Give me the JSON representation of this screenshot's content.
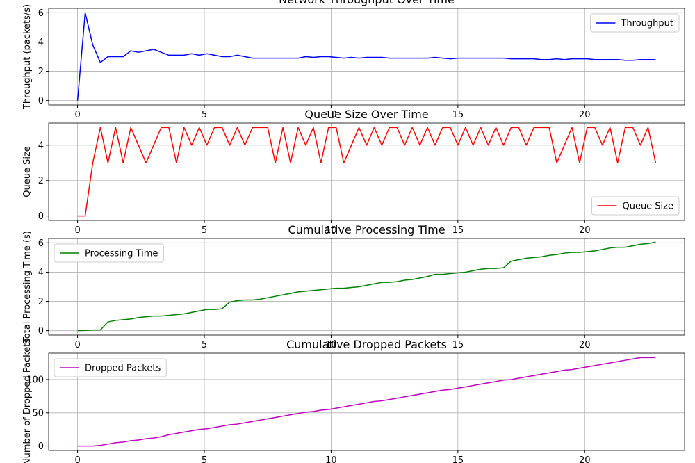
{
  "chart_data": [
    {
      "type": "line",
      "title": "Network Throughput Over Time",
      "y_label": "Throughput (packets/s)",
      "legend": "upper right",
      "grid": true,
      "x": [
        0,
        0.3,
        0.6,
        0.9,
        1.2,
        1.5,
        1.8,
        2.1,
        2.4,
        2.7,
        3,
        3.3,
        3.6,
        3.9,
        4.2,
        4.5,
        4.8,
        5.1,
        5.4,
        5.7,
        6,
        6.3,
        6.6,
        6.9,
        7.2,
        7.5,
        7.8,
        8.1,
        8.4,
        8.7,
        9,
        9.3,
        9.6,
        9.9,
        10.2,
        10.5,
        10.8,
        11.1,
        11.4,
        11.7,
        12,
        12.3,
        12.6,
        12.9,
        13.2,
        13.5,
        13.8,
        14.1,
        14.4,
        14.7,
        15,
        15.3,
        15.6,
        15.9,
        16.2,
        16.5,
        16.8,
        17.1,
        17.4,
        17.7,
        18,
        18.3,
        18.6,
        18.9,
        19.2,
        19.5,
        19.8,
        20.1,
        20.4,
        20.7,
        21,
        21.3,
        21.6,
        21.9,
        22.2,
        22.5,
        22.8
      ],
      "series": [
        {
          "name": "Throughput",
          "color": "#0000ff",
          "values": [
            0,
            6,
            3.8,
            2.6,
            3.0,
            3.0,
            3.0,
            3.4,
            3.3,
            3.4,
            3.5,
            3.3,
            3.1,
            3.1,
            3.1,
            3.2,
            3.1,
            3.2,
            3.1,
            3.0,
            3.0,
            3.1,
            3.0,
            2.9,
            2.9,
            2.9,
            2.9,
            2.9,
            2.9,
            2.9,
            3.0,
            2.95,
            3.0,
            3.0,
            2.95,
            2.9,
            2.95,
            2.9,
            2.95,
            2.95,
            2.95,
            2.9,
            2.9,
            2.9,
            2.9,
            2.9,
            2.9,
            2.95,
            2.9,
            2.85,
            2.9,
            2.9,
            2.9,
            2.9,
            2.9,
            2.9,
            2.9,
            2.85,
            2.85,
            2.85,
            2.85,
            2.8,
            2.8,
            2.85,
            2.8,
            2.85,
            2.85,
            2.85,
            2.8,
            2.8,
            2.8,
            2.8,
            2.75,
            2.75,
            2.8,
            2.8,
            2.8
          ]
        }
      ],
      "xlim": [
        -1.14,
        23.94
      ],
      "xticks": [
        0,
        5,
        10,
        15,
        20
      ],
      "ylim": [
        -0.3,
        6.3
      ],
      "yticks": [
        0,
        2,
        4,
        6
      ]
    },
    {
      "type": "line",
      "title": "Queue Size Over Time",
      "y_label": "Queue Size",
      "legend": "lower right",
      "grid": true,
      "x": [
        0,
        0.3,
        0.6,
        0.9,
        1.2,
        1.5,
        1.8,
        2.1,
        2.4,
        2.7,
        3,
        3.3,
        3.6,
        3.9,
        4.2,
        4.5,
        4.8,
        5.1,
        5.4,
        5.7,
        6,
        6.3,
        6.6,
        6.9,
        7.2,
        7.5,
        7.8,
        8.1,
        8.4,
        8.7,
        9,
        9.3,
        9.6,
        9.9,
        10.2,
        10.5,
        10.8,
        11.1,
        11.4,
        11.7,
        12,
        12.3,
        12.6,
        12.9,
        13.2,
        13.5,
        13.8,
        14.1,
        14.4,
        14.7,
        15,
        15.3,
        15.6,
        15.9,
        16.2,
        16.5,
        16.8,
        17.1,
        17.4,
        17.7,
        18,
        18.3,
        18.6,
        18.9,
        19.2,
        19.5,
        19.8,
        20.1,
        20.4,
        20.7,
        21,
        21.3,
        21.6,
        21.9,
        22.2,
        22.5,
        22.8
      ],
      "series": [
        {
          "name": "Queue Size",
          "color": "#ff0000",
          "values": [
            0,
            0,
            3,
            5,
            3,
            5,
            3,
            5,
            4,
            3,
            4,
            5,
            5,
            3,
            5,
            4,
            5,
            4,
            5,
            5,
            4,
            5,
            4,
            5,
            5,
            5,
            3,
            5,
            3,
            5,
            4,
            5,
            3,
            5,
            5,
            3,
            4,
            5,
            4,
            5,
            4,
            5,
            5,
            4,
            5,
            4,
            5,
            4,
            5,
            5,
            4,
            5,
            4,
            5,
            4,
            5,
            4,
            5,
            5,
            4,
            5,
            5,
            5,
            3,
            4,
            5,
            3,
            5,
            5,
            4,
            5,
            3,
            5,
            5,
            4,
            5,
            3
          ]
        }
      ],
      "xlim": [
        -1.14,
        23.94
      ],
      "xticks": [
        0,
        5,
        10,
        15,
        20
      ],
      "ylim": [
        -0.25,
        5.25
      ],
      "yticks": [
        0,
        2,
        4
      ]
    },
    {
      "type": "line",
      "title": "Cumulative Processing Time",
      "y_label": "Total Processing Time (s)",
      "legend": "upper left",
      "grid": true,
      "x": [
        0,
        0.3,
        0.6,
        0.9,
        1.2,
        1.5,
        1.8,
        2.1,
        2.4,
        2.7,
        3,
        3.3,
        3.6,
        3.9,
        4.2,
        4.5,
        4.8,
        5.1,
        5.4,
        5.7,
        6,
        6.3,
        6.6,
        6.9,
        7.2,
        7.5,
        7.8,
        8.1,
        8.4,
        8.7,
        9,
        9.3,
        9.6,
        9.9,
        10.2,
        10.5,
        10.8,
        11.1,
        11.4,
        11.7,
        12,
        12.3,
        12.6,
        12.9,
        13.2,
        13.5,
        13.8,
        14.1,
        14.4,
        14.7,
        15,
        15.3,
        15.6,
        15.9,
        16.2,
        16.5,
        16.8,
        17.1,
        17.4,
        17.7,
        18,
        18.3,
        18.6,
        18.9,
        19.2,
        19.5,
        19.8,
        20.1,
        20.4,
        20.7,
        21,
        21.3,
        21.6,
        21.9,
        22.2,
        22.5,
        22.8
      ],
      "series": [
        {
          "name": "Processing Time",
          "color": "#008000",
          "values": [
            0,
            0.02,
            0.05,
            0.05,
            0.6,
            0.7,
            0.75,
            0.8,
            0.9,
            0.95,
            1.0,
            1.0,
            1.05,
            1.1,
            1.15,
            1.25,
            1.35,
            1.45,
            1.45,
            1.5,
            1.95,
            2.05,
            2.1,
            2.1,
            2.15,
            2.25,
            2.35,
            2.45,
            2.55,
            2.65,
            2.7,
            2.75,
            2.8,
            2.85,
            2.9,
            2.9,
            2.95,
            3.0,
            3.1,
            3.2,
            3.3,
            3.3,
            3.35,
            3.45,
            3.5,
            3.6,
            3.7,
            3.85,
            3.85,
            3.9,
            3.95,
            4.0,
            4.1,
            4.2,
            4.25,
            4.25,
            4.3,
            4.75,
            4.85,
            4.95,
            5.0,
            5.05,
            5.15,
            5.2,
            5.3,
            5.35,
            5.35,
            5.4,
            5.45,
            5.55,
            5.65,
            5.7,
            5.7,
            5.8,
            5.9,
            5.95,
            6.05
          ]
        }
      ],
      "xlim": [
        -1.14,
        23.94
      ],
      "xticks": [
        0,
        5,
        10,
        15,
        20
      ],
      "ylim": [
        -0.3,
        6.3
      ],
      "yticks": [
        0,
        2,
        4,
        6
      ]
    },
    {
      "type": "line",
      "title": "Cumulative Dropped Packets",
      "y_label": "Number of Dropped Packets",
      "legend": "upper left",
      "grid": true,
      "x": [
        0,
        0.3,
        0.6,
        0.9,
        1.2,
        1.5,
        1.8,
        2.1,
        2.4,
        2.7,
        3,
        3.3,
        3.6,
        3.9,
        4.2,
        4.5,
        4.8,
        5.1,
        5.4,
        5.7,
        6,
        6.3,
        6.6,
        6.9,
        7.2,
        7.5,
        7.8,
        8.1,
        8.4,
        8.7,
        9,
        9.3,
        9.6,
        9.9,
        10.2,
        10.5,
        10.8,
        11.1,
        11.4,
        11.7,
        12,
        12.3,
        12.6,
        12.9,
        13.2,
        13.5,
        13.8,
        14.1,
        14.4,
        14.7,
        15,
        15.3,
        15.6,
        15.9,
        16.2,
        16.5,
        16.8,
        17.1,
        17.4,
        17.7,
        18,
        18.3,
        18.6,
        18.9,
        19.2,
        19.5,
        19.8,
        20.1,
        20.4,
        20.7,
        21,
        21.3,
        21.6,
        21.9,
        22.2,
        22.5,
        22.8
      ],
      "series": [
        {
          "name": "Dropped Packets",
          "color": "#bf00bf",
          "values": [
            0,
            0,
            0,
            1,
            3,
            5,
            6,
            8,
            9,
            11,
            12,
            14,
            17,
            19,
            21,
            23,
            25,
            26,
            28,
            30,
            32,
            33,
            35,
            37,
            39,
            41,
            43,
            45,
            47,
            49,
            51,
            52,
            54,
            55,
            57,
            59,
            61,
            63,
            65,
            67,
            68,
            70,
            72,
            74,
            76,
            78,
            80,
            82,
            84,
            85,
            87,
            89,
            91,
            93,
            95,
            97,
            99,
            100,
            102,
            104,
            106,
            108,
            110,
            112,
            114,
            115,
            117,
            119,
            121,
            123,
            125,
            127,
            129,
            131,
            133,
            133,
            133
          ]
        }
      ],
      "xlim": [
        -1.14,
        23.94
      ],
      "xticks": [
        0,
        5,
        10,
        15,
        20
      ],
      "ylim": [
        -6.65,
        139.65
      ],
      "yticks": [
        0,
        50,
        100
      ]
    }
  ]
}
